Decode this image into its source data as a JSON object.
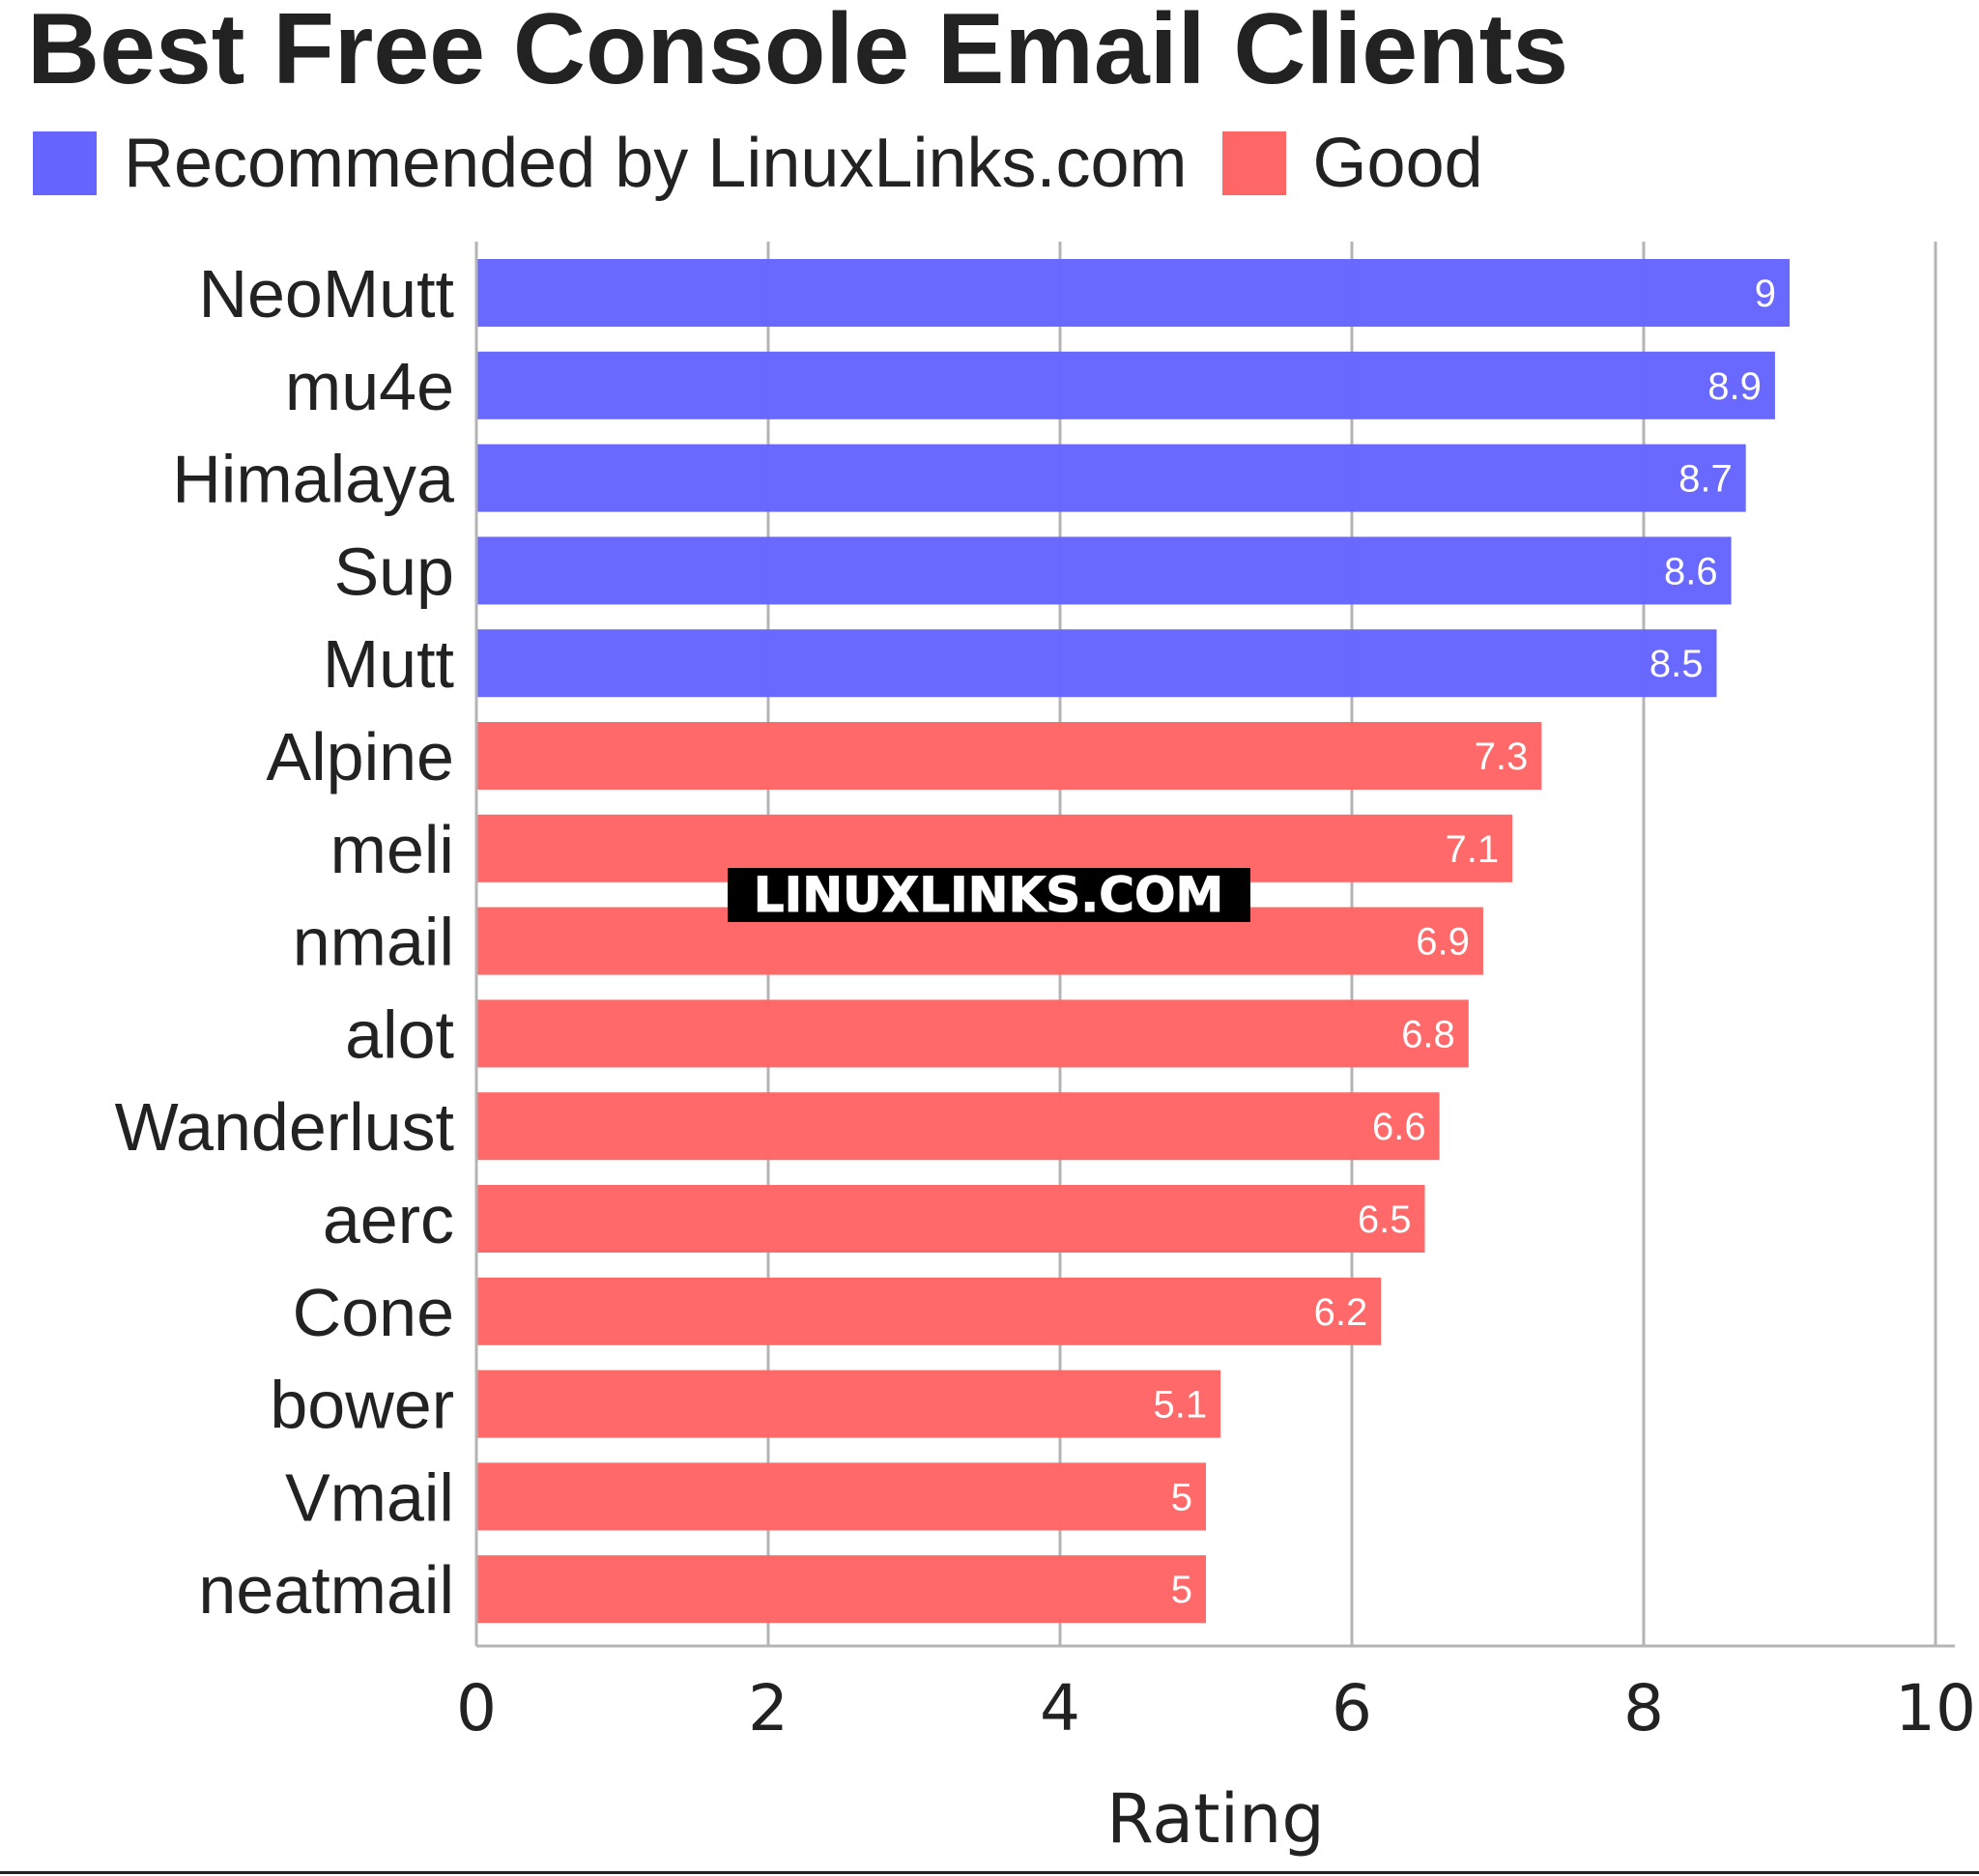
{
  "chart_data": {
    "type": "bar",
    "orientation": "horizontal",
    "title": "Best Free Console Email Clients",
    "xlabel": "Rating",
    "ylabel": "",
    "xlim": [
      0,
      10
    ],
    "xticks": [
      "0",
      "2",
      "4",
      "6",
      "8",
      "10"
    ],
    "grid": true,
    "legend_position": "top-left",
    "series": [
      {
        "name": "Recommended by LinuxLinks.com",
        "color": "#6666ff"
      },
      {
        "name": "Good",
        "color": "#ff6666"
      }
    ],
    "categories": [
      "NeoMutt",
      "mu4e",
      "Himalaya",
      "Sup",
      "Mutt",
      "Alpine",
      "meli",
      "nmail",
      "alot",
      "Wanderlust",
      "aerc",
      "Cone",
      "bower",
      "Vmail",
      "neatmail"
    ],
    "values": [
      9,
      8.9,
      8.7,
      8.6,
      8.5,
      7.3,
      7.1,
      6.9,
      6.8,
      6.6,
      6.5,
      6.2,
      5.1,
      5,
      5
    ],
    "value_labels": [
      "9",
      "8.9",
      "8.7",
      "8.6",
      "8.5",
      "7.3",
      "7.1",
      "6.9",
      "6.8",
      "6.6",
      "6.5",
      "6.2",
      "5.1",
      "5",
      "5"
    ],
    "bar_series": [
      0,
      0,
      0,
      0,
      0,
      1,
      1,
      1,
      1,
      1,
      1,
      1,
      1,
      1,
      1
    ]
  },
  "watermark": "LINUXLINKS.COM",
  "colors": {
    "recommended": "#6666ff",
    "good": "#ff6666",
    "text": "#222222",
    "grid": "#b4b4b4",
    "value_label": "#ffffff"
  }
}
